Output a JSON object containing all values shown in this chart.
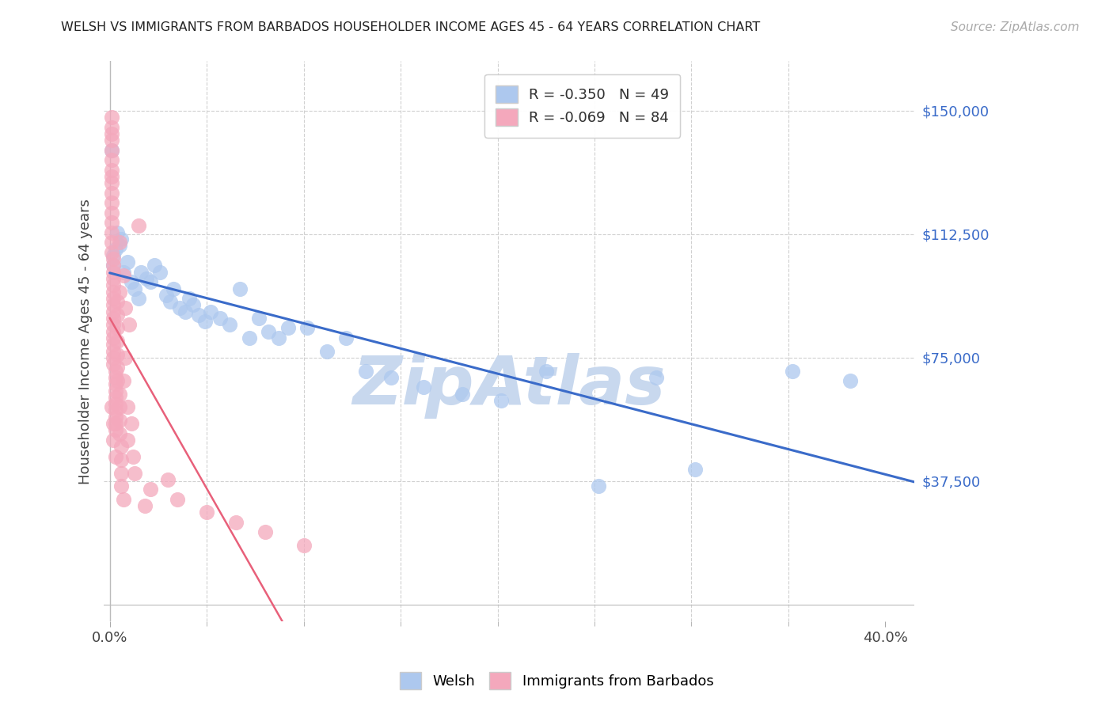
{
  "title": "WELSH VS IMMIGRANTS FROM BARBADOS HOUSEHOLDER INCOME AGES 45 - 64 YEARS CORRELATION CHART",
  "source": "Source: ZipAtlas.com",
  "ylabel": "Householder Income Ages 45 - 64 years",
  "ytick_labels": [
    "$37,500",
    "$75,000",
    "$112,500",
    "$150,000"
  ],
  "ytick_vals": [
    37500,
    75000,
    112500,
    150000
  ],
  "xtick_labels_show": [
    "0.0%",
    "40.0%"
  ],
  "xtick_vals_show": [
    0.0,
    0.4
  ],
  "xtick_minor_vals": [
    0.05,
    0.1,
    0.15,
    0.2,
    0.25,
    0.3,
    0.35
  ],
  "xlim": [
    -0.003,
    0.415
  ],
  "ylim": [
    -5000,
    165000
  ],
  "welsh_color": "#adc8ee",
  "barbados_color": "#f4a8bc",
  "welsh_line_color": "#3a6bc9",
  "barbados_line_color": "#e8607a",
  "grid_color": "#d0d0d0",
  "watermark_color": "#c8d8ee",
  "legend_welsh_R": "-0.350",
  "legend_welsh_N": "49",
  "legend_barbados_R": "-0.069",
  "legend_barbados_N": "84",
  "title_color": "#222222",
  "source_color": "#aaaaaa",
  "tick_color": "#444444",
  "ylabel_color": "#444444",
  "ytick_color": "#3a6bc9",
  "welsh_x": [
    0.001,
    0.002,
    0.002,
    0.003,
    0.004,
    0.005,
    0.006,
    0.007,
    0.009,
    0.011,
    0.013,
    0.015,
    0.016,
    0.019,
    0.021,
    0.023,
    0.026,
    0.029,
    0.031,
    0.033,
    0.036,
    0.039,
    0.041,
    0.043,
    0.046,
    0.049,
    0.052,
    0.057,
    0.062,
    0.067,
    0.072,
    0.077,
    0.082,
    0.087,
    0.092,
    0.102,
    0.112,
    0.122,
    0.132,
    0.145,
    0.162,
    0.182,
    0.202,
    0.225,
    0.252,
    0.282,
    0.302,
    0.352,
    0.382
  ],
  "welsh_y": [
    138000,
    106000,
    103000,
    108000,
    113000,
    109000,
    111000,
    101000,
    104000,
    98000,
    96000,
    93000,
    101000,
    99000,
    98000,
    103000,
    101000,
    94000,
    92000,
    96000,
    90000,
    89000,
    93000,
    91000,
    88000,
    86000,
    89000,
    87000,
    85000,
    96000,
    81000,
    87000,
    83000,
    81000,
    84000,
    84000,
    77000,
    81000,
    71000,
    69000,
    66000,
    64000,
    62000,
    71000,
    36000,
    69000,
    41000,
    71000,
    68000
  ],
  "barbados_x": [
    0.001,
    0.001,
    0.001,
    0.001,
    0.001,
    0.001,
    0.001,
    0.001,
    0.001,
    0.001,
    0.001,
    0.001,
    0.001,
    0.001,
    0.001,
    0.001,
    0.002,
    0.002,
    0.002,
    0.002,
    0.002,
    0.002,
    0.002,
    0.002,
    0.002,
    0.002,
    0.002,
    0.002,
    0.002,
    0.002,
    0.002,
    0.002,
    0.002,
    0.003,
    0.003,
    0.003,
    0.003,
    0.003,
    0.003,
    0.003,
    0.003,
    0.003,
    0.003,
    0.004,
    0.004,
    0.004,
    0.004,
    0.004,
    0.004,
    0.004,
    0.005,
    0.005,
    0.005,
    0.005,
    0.005,
    0.005,
    0.006,
    0.006,
    0.006,
    0.006,
    0.007,
    0.007,
    0.007,
    0.008,
    0.008,
    0.009,
    0.009,
    0.01,
    0.011,
    0.012,
    0.013,
    0.015,
    0.018,
    0.021,
    0.03,
    0.035,
    0.05,
    0.065,
    0.08,
    0.1,
    0.002,
    0.003,
    0.001,
    0.002
  ],
  "barbados_y": [
    148000,
    145000,
    143000,
    141000,
    138000,
    135000,
    132000,
    130000,
    128000,
    125000,
    122000,
    119000,
    116000,
    113000,
    110000,
    107000,
    105000,
    103000,
    101000,
    99000,
    97000,
    95000,
    93000,
    91000,
    89000,
    87000,
    85000,
    83000,
    81000,
    79000,
    77000,
    75000,
    73000,
    71000,
    69000,
    67000,
    65000,
    63000,
    61000,
    59000,
    57000,
    55000,
    53000,
    92000,
    88000,
    84000,
    80000,
    76000,
    72000,
    68000,
    110000,
    95000,
    64000,
    60000,
    56000,
    52000,
    48000,
    44000,
    40000,
    36000,
    32000,
    100000,
    68000,
    90000,
    75000,
    60000,
    50000,
    85000,
    55000,
    45000,
    40000,
    115000,
    30000,
    35000,
    38000,
    32000,
    28000,
    25000,
    22000,
    18000,
    50000,
    45000,
    60000,
    55000
  ]
}
